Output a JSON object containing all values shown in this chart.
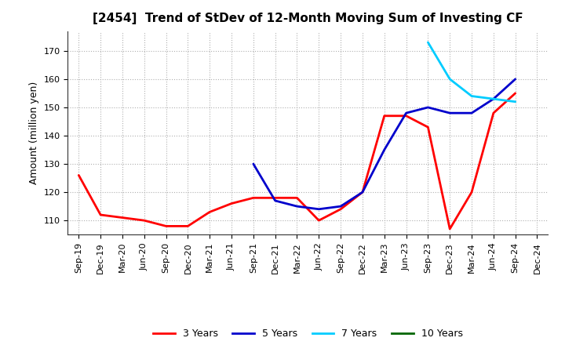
{
  "title": "[2454]  Trend of StDev of 12-Month Moving Sum of Investing CF",
  "ylabel": "Amount (million yen)",
  "background_color": "#ffffff",
  "grid_color": "#b0b0b0",
  "x_labels": [
    "Sep-19",
    "Dec-19",
    "Mar-20",
    "Jun-20",
    "Sep-20",
    "Dec-20",
    "Mar-21",
    "Jun-21",
    "Sep-21",
    "Dec-21",
    "Mar-22",
    "Jun-22",
    "Sep-22",
    "Dec-22",
    "Mar-23",
    "Jun-23",
    "Sep-23",
    "Dec-23",
    "Mar-24",
    "Jun-24",
    "Sep-24",
    "Dec-24"
  ],
  "series": {
    "3 Years": {
      "color": "#ff0000",
      "linewidth": 2.0,
      "data": [
        [
          "Sep-19",
          126
        ],
        [
          "Dec-19",
          112
        ],
        [
          "Mar-20",
          111
        ],
        [
          "Jun-20",
          110
        ],
        [
          "Sep-20",
          108
        ],
        [
          "Dec-20",
          108
        ],
        [
          "Mar-21",
          113
        ],
        [
          "Jun-21",
          116
        ],
        [
          "Sep-21",
          118
        ],
        [
          "Dec-21",
          118
        ],
        [
          "Mar-22",
          118
        ],
        [
          "Jun-22",
          110
        ],
        [
          "Sep-22",
          114
        ],
        [
          "Dec-22",
          120
        ],
        [
          "Mar-23",
          147
        ],
        [
          "Jun-23",
          147
        ],
        [
          "Sep-23",
          143
        ],
        [
          "Dec-23",
          107
        ],
        [
          "Mar-24",
          120
        ],
        [
          "Jun-24",
          148
        ],
        [
          "Sep-24",
          155
        ]
      ]
    },
    "5 Years": {
      "color": "#0000cc",
      "linewidth": 2.0,
      "data": [
        [
          "Sep-21",
          130
        ],
        [
          "Dec-21",
          117
        ],
        [
          "Mar-22",
          115
        ],
        [
          "Jun-22",
          114
        ],
        [
          "Sep-22",
          115
        ],
        [
          "Dec-22",
          120
        ],
        [
          "Mar-23",
          135
        ],
        [
          "Jun-23",
          148
        ],
        [
          "Sep-23",
          150
        ],
        [
          "Dec-23",
          148
        ],
        [
          "Mar-24",
          148
        ],
        [
          "Jun-24",
          153
        ],
        [
          "Sep-24",
          160
        ]
      ]
    },
    "7 Years": {
      "color": "#00ccff",
      "linewidth": 2.0,
      "data": [
        [
          "Sep-23",
          173
        ],
        [
          "Dec-23",
          160
        ],
        [
          "Mar-24",
          154
        ],
        [
          "Jun-24",
          153
        ],
        [
          "Sep-24",
          152
        ]
      ]
    },
    "10 Years": {
      "color": "#006600",
      "linewidth": 2.0,
      "data": []
    }
  },
  "ylim": [
    105,
    177
  ],
  "yticks": [
    110,
    120,
    130,
    140,
    150,
    160,
    170
  ],
  "legend_labels": [
    "3 Years",
    "5 Years",
    "7 Years",
    "10 Years"
  ],
  "legend_colors": [
    "#ff0000",
    "#0000cc",
    "#00ccff",
    "#006600"
  ],
  "title_fontsize": 11,
  "axis_fontsize": 9,
  "tick_fontsize": 8
}
